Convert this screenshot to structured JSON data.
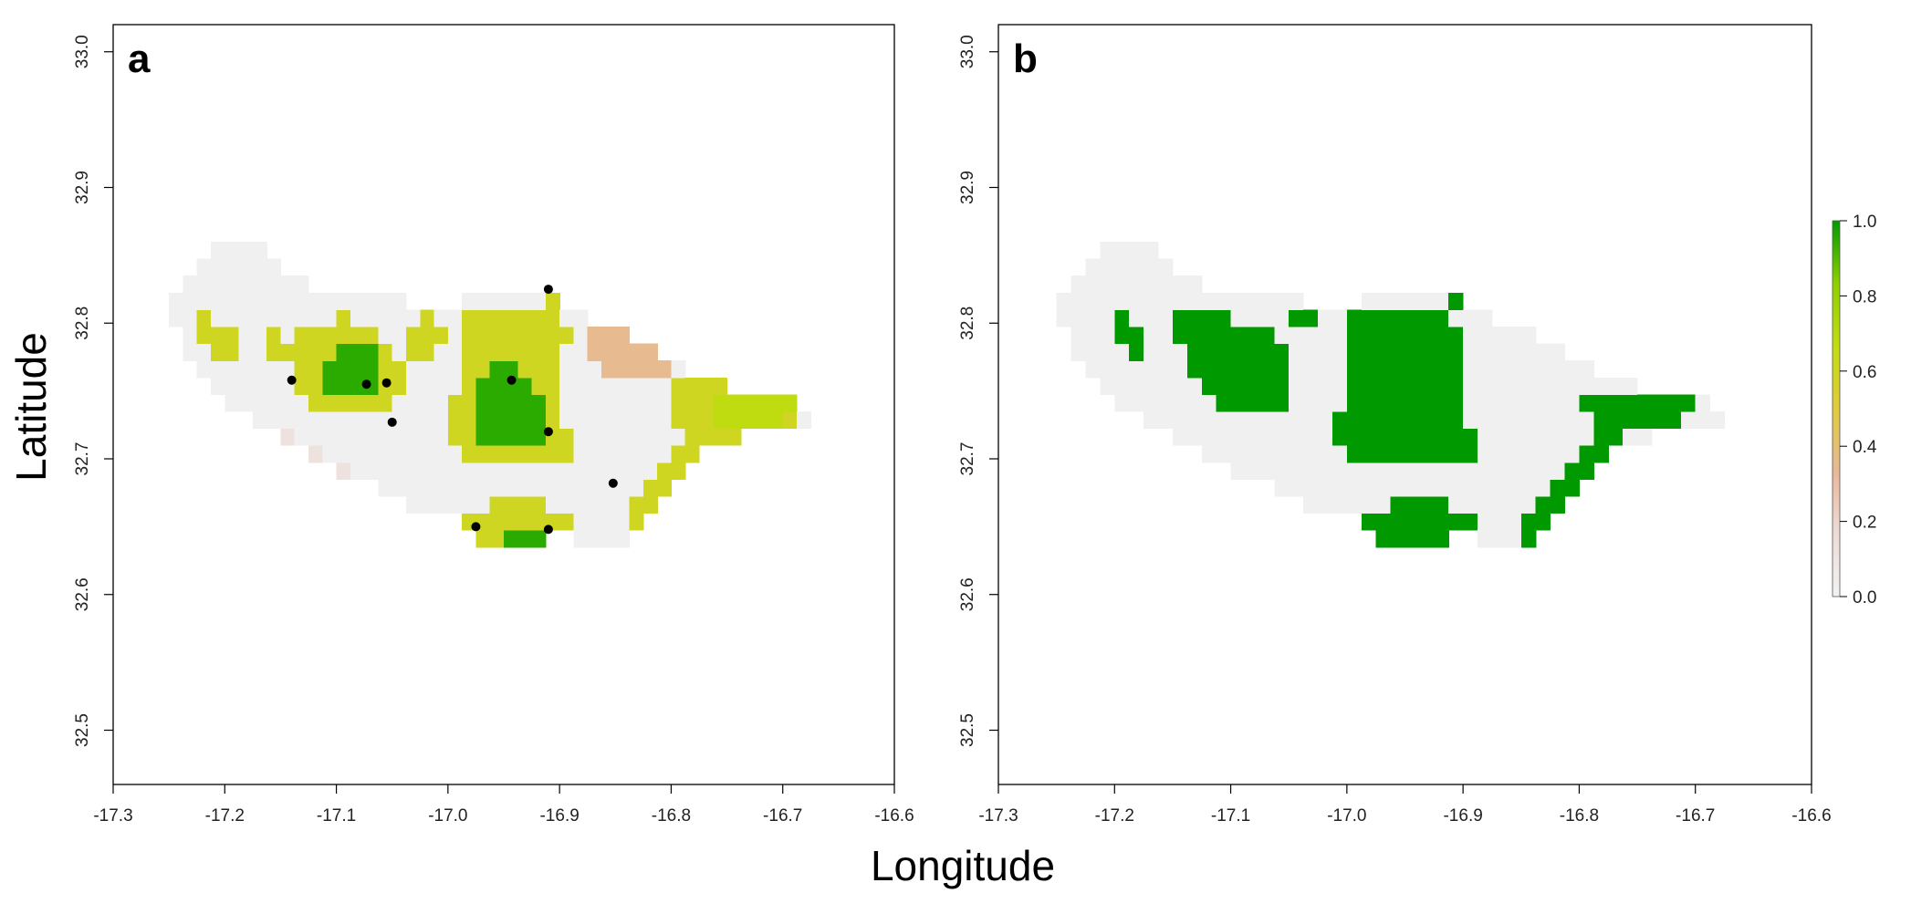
{
  "figure": {
    "xlabel": "Longitude",
    "ylabel": "Latitude"
  },
  "colors": {
    "scale": [
      "#f2f2f2",
      "#eddcd8",
      "#e8b898",
      "#e0cc3c",
      "#c2dd10",
      "#8fd000",
      "#009a00"
    ],
    "land_base": "#f0f0f0",
    "point": "#000000",
    "frame": "#000000"
  },
  "chart_data": [
    {
      "type": "heatmap",
      "panel_label": "a",
      "xlim": [
        -17.3,
        -16.6
      ],
      "ylim": [
        32.46,
        33.02
      ],
      "x_ticks": [
        "-17.3",
        "-17.2",
        "-17.1",
        "-17.0",
        "-16.9",
        "-16.8",
        "-16.7",
        "-16.6"
      ],
      "y_ticks": [
        "32.5",
        "32.6",
        "32.7",
        "32.8",
        "32.9",
        "33.0"
      ],
      "island_outline": [
        [
          -17.255,
          32.81
        ],
        [
          -17.235,
          32.835
        ],
        [
          -17.205,
          32.862
        ],
        [
          -17.175,
          32.86
        ],
        [
          -17.15,
          32.843
        ],
        [
          -17.12,
          32.828
        ],
        [
          -17.06,
          32.817
        ],
        [
          -17.0,
          32.815
        ],
        [
          -16.96,
          32.82
        ],
        [
          -16.92,
          32.826
        ],
        [
          -16.88,
          32.808
        ],
        [
          -16.84,
          32.792
        ],
        [
          -16.8,
          32.772
        ],
        [
          -16.76,
          32.757
        ],
        [
          -16.72,
          32.748
        ],
        [
          -16.685,
          32.742
        ],
        [
          -16.66,
          32.736
        ],
        [
          -16.69,
          32.722
        ],
        [
          -16.73,
          32.718
        ],
        [
          -16.77,
          32.705
        ],
        [
          -16.8,
          32.68
        ],
        [
          -16.82,
          32.655
        ],
        [
          -16.85,
          32.635
        ],
        [
          -16.89,
          32.643
        ],
        [
          -16.93,
          32.64
        ],
        [
          -16.97,
          32.64
        ],
        [
          -17.0,
          32.66
        ],
        [
          -17.04,
          32.668
        ],
        [
          -17.08,
          32.685
        ],
        [
          -17.12,
          32.7
        ],
        [
          -17.16,
          32.72
        ],
        [
          -17.2,
          32.745
        ],
        [
          -17.23,
          32.77
        ]
      ],
      "patches": [
        {
          "shape": [
            [
              -17.22,
              32.81
            ],
            [
              -17.2,
              32.8
            ],
            [
              -17.18,
              32.775
            ],
            [
              -17.2,
              32.765
            ],
            [
              -17.225,
              32.785
            ]
          ],
          "value": 0.6
        },
        {
          "shape": [
            [
              -17.155,
              32.8
            ],
            [
              -17.145,
              32.785
            ],
            [
              -17.125,
              32.77
            ],
            [
              -17.135,
              32.76
            ],
            [
              -17.16,
              32.78
            ]
          ],
          "value": 0.6
        },
        {
          "shape": [
            [
              -17.135,
              32.8
            ],
            [
              -17.095,
              32.805
            ],
            [
              -17.06,
              32.79
            ],
            [
              -17.04,
              32.775
            ],
            [
              -17.04,
              32.745
            ],
            [
              -17.06,
              32.73
            ],
            [
              -17.08,
              32.73
            ],
            [
              -17.12,
              32.74
            ],
            [
              -17.14,
              32.76
            ]
          ],
          "value": 0.6
        },
        {
          "shape": [
            [
              -17.1,
              32.79
            ],
            [
              -17.075,
              32.79
            ],
            [
              -17.055,
              32.775
            ],
            [
              -17.06,
              32.755
            ],
            [
              -17.09,
              32.745
            ],
            [
              -17.115,
              32.755
            ]
          ],
          "value": 0.95
        },
        {
          "shape": [
            [
              -17.045,
              32.8
            ],
            [
              -17.015,
              32.805
            ],
            [
              -17.0,
              32.79
            ],
            [
              -17.02,
              32.775
            ],
            [
              -17.04,
              32.78
            ]
          ],
          "value": 0.6
        },
        {
          "shape": [
            [
              -16.98,
              32.81
            ],
            [
              -16.94,
              32.815
            ],
            [
              -16.9,
              32.812
            ],
            [
              -16.89,
              32.79
            ],
            [
              -16.9,
              32.77
            ],
            [
              -16.9,
              32.73
            ],
            [
              -16.88,
              32.715
            ],
            [
              -16.895,
              32.695
            ],
            [
              -16.94,
              32.7
            ],
            [
              -16.98,
              32.695
            ],
            [
              -17.0,
              32.71
            ],
            [
              -16.995,
              32.74
            ],
            [
              -16.99,
              32.78
            ]
          ],
          "value": 0.6
        },
        {
          "shape": [
            [
              -16.975,
              32.765
            ],
            [
              -16.935,
              32.77
            ],
            [
              -16.915,
              32.75
            ],
            [
              -16.91,
              32.72
            ],
            [
              -16.935,
              32.705
            ],
            [
              -16.965,
              32.71
            ],
            [
              -16.98,
              32.735
            ]
          ],
          "value": 0.95
        },
        {
          "shape": [
            [
              -16.925,
              32.835
            ],
            [
              -16.9,
              32.838
            ],
            [
              -16.893,
              32.818
            ],
            [
              -16.915,
              32.812
            ]
          ],
          "value": 0.6
        },
        {
          "shape": [
            [
              -16.875,
              32.8
            ],
            [
              -16.85,
              32.81
            ],
            [
              -16.82,
              32.79
            ],
            [
              -16.8,
              32.77
            ],
            [
              -16.82,
              32.757
            ],
            [
              -16.85,
              32.76
            ],
            [
              -16.88,
              32.775
            ]
          ],
          "value": 0.35
        },
        {
          "shape": [
            [
              -16.8,
              32.755
            ],
            [
              -16.76,
              32.76
            ],
            [
              -16.72,
              32.75
            ],
            [
              -16.685,
              32.742
            ],
            [
              -16.68,
              32.73
            ],
            [
              -16.72,
              32.72
            ],
            [
              -16.76,
              32.708
            ],
            [
              -16.79,
              32.69
            ],
            [
              -16.8,
              32.67
            ],
            [
              -16.82,
              32.65
            ],
            [
              -16.85,
              32.64
            ],
            [
              -16.84,
              32.66
            ],
            [
              -16.81,
              32.69
            ],
            [
              -16.79,
              32.72
            ],
            [
              -16.8,
              32.74
            ]
          ],
          "value": 0.6
        },
        {
          "shape": [
            [
              -16.76,
              32.75
            ],
            [
              -16.72,
              32.748
            ],
            [
              -16.685,
              32.742
            ],
            [
              -16.68,
              32.732
            ],
            [
              -16.72,
              32.725
            ],
            [
              -16.755,
              32.72
            ]
          ],
          "value": 0.68
        },
        {
          "shape": [
            [
              -16.99,
              32.66
            ],
            [
              -16.95,
              32.67
            ],
            [
              -16.9,
              32.665
            ],
            [
              -16.88,
              32.65
            ],
            [
              -16.9,
              32.64
            ],
            [
              -16.94,
              32.632
            ],
            [
              -16.975,
              32.642
            ]
          ],
          "value": 0.6
        },
        {
          "shape": [
            [
              -16.965,
              32.65
            ],
            [
              -16.92,
              32.648
            ],
            [
              -16.875,
              32.646
            ],
            [
              -16.9,
              32.638
            ],
            [
              -16.94,
              32.632
            ]
          ],
          "value": 0.95
        },
        {
          "shape": [
            [
              -17.17,
              32.715
            ],
            [
              -17.14,
              32.71
            ],
            [
              -17.1,
              32.69
            ],
            [
              -17.07,
              32.672
            ],
            [
              -17.04,
              32.665
            ],
            [
              -17.06,
              32.68
            ],
            [
              -17.1,
              32.7
            ],
            [
              -17.14,
              32.72
            ]
          ],
          "value": 0.12
        }
      ],
      "points": [
        [
          -17.14,
          32.758
        ],
        [
          -17.073,
          32.755
        ],
        [
          -17.055,
          32.756
        ],
        [
          -17.05,
          32.727
        ],
        [
          -16.943,
          32.758
        ],
        [
          -16.91,
          32.825
        ],
        [
          -16.91,
          32.72
        ],
        [
          -16.852,
          32.682
        ],
        [
          -16.975,
          32.65
        ],
        [
          -16.91,
          32.648
        ]
      ]
    },
    {
      "type": "heatmap",
      "panel_label": "b",
      "xlim": [
        -17.3,
        -16.6
      ],
      "ylim": [
        32.46,
        33.02
      ],
      "x_ticks": [
        "-17.3",
        "-17.2",
        "-17.1",
        "-17.0",
        "-16.9",
        "-16.8",
        "-16.7",
        "-16.6"
      ],
      "y_ticks": [
        "32.5",
        "32.6",
        "32.7",
        "32.8",
        "32.9",
        "33.0"
      ],
      "island_outline": [
        [
          -17.255,
          32.81
        ],
        [
          -17.235,
          32.835
        ],
        [
          -17.205,
          32.862
        ],
        [
          -17.175,
          32.86
        ],
        [
          -17.15,
          32.843
        ],
        [
          -17.12,
          32.828
        ],
        [
          -17.06,
          32.817
        ],
        [
          -17.0,
          32.815
        ],
        [
          -16.96,
          32.82
        ],
        [
          -16.92,
          32.826
        ],
        [
          -16.88,
          32.808
        ],
        [
          -16.84,
          32.792
        ],
        [
          -16.8,
          32.772
        ],
        [
          -16.76,
          32.757
        ],
        [
          -16.72,
          32.748
        ],
        [
          -16.685,
          32.742
        ],
        [
          -16.66,
          32.736
        ],
        [
          -16.69,
          32.722
        ],
        [
          -16.73,
          32.718
        ],
        [
          -16.77,
          32.705
        ],
        [
          -16.8,
          32.68
        ],
        [
          -16.82,
          32.655
        ],
        [
          -16.85,
          32.635
        ],
        [
          -16.89,
          32.643
        ],
        [
          -16.93,
          32.64
        ],
        [
          -16.97,
          32.64
        ],
        [
          -17.0,
          32.66
        ],
        [
          -17.04,
          32.668
        ],
        [
          -17.08,
          32.685
        ],
        [
          -17.12,
          32.7
        ],
        [
          -17.16,
          32.72
        ],
        [
          -17.2,
          32.745
        ],
        [
          -17.23,
          32.77
        ]
      ],
      "patches": [
        {
          "shape": [
            [
              -17.2,
              32.81
            ],
            [
              -17.185,
              32.8
            ],
            [
              -17.17,
              32.78
            ],
            [
              -17.19,
              32.775
            ],
            [
              -17.205,
              32.795
            ]
          ],
          "value": 1.0
        },
        {
          "shape": [
            [
              -17.14,
              32.815
            ],
            [
              -17.1,
              32.805
            ],
            [
              -17.07,
              32.795
            ],
            [
              -17.05,
              32.778
            ],
            [
              -17.045,
              32.75
            ],
            [
              -17.06,
              32.735
            ],
            [
              -17.09,
              32.73
            ],
            [
              -17.12,
              32.745
            ],
            [
              -17.14,
              32.77
            ],
            [
              -17.15,
              32.8
            ]
          ],
          "value": 1.0
        },
        {
          "shape": [
            [
              -17.06,
              32.81
            ],
            [
              -17.03,
              32.812
            ],
            [
              -17.02,
              32.798
            ],
            [
              -17.04,
              32.79
            ]
          ],
          "value": 1.0
        },
        {
          "shape": [
            [
              -17.0,
              32.81
            ],
            [
              -16.97,
              32.815
            ],
            [
              -16.94,
              32.812
            ],
            [
              -16.91,
              32.805
            ],
            [
              -16.9,
              32.78
            ],
            [
              -16.905,
              32.76
            ],
            [
              -16.9,
              32.74
            ],
            [
              -16.89,
              32.72
            ],
            [
              -16.88,
              32.705
            ],
            [
              -16.9,
              32.695
            ],
            [
              -16.93,
              32.7
            ],
            [
              -16.97,
              32.695
            ],
            [
              -17.0,
              32.7
            ],
            [
              -17.01,
              32.72
            ],
            [
              -17.0,
              32.745
            ],
            [
              -16.995,
              32.78
            ]
          ],
          "value": 1.0
        },
        {
          "shape": [
            [
              -16.91,
              32.83
            ],
            [
              -16.89,
              32.83
            ],
            [
              -16.888,
              32.815
            ],
            [
              -16.908,
              32.812
            ]
          ],
          "value": 1.0
        },
        {
          "shape": [
            [
              -16.795,
              32.745
            ],
            [
              -16.765,
              32.755
            ],
            [
              -16.735,
              32.75
            ],
            [
              -16.7,
              32.745
            ],
            [
              -16.685,
              32.735
            ],
            [
              -16.72,
              32.728
            ],
            [
              -16.76,
              32.72
            ],
            [
              -16.785,
              32.7
            ],
            [
              -16.8,
              32.675
            ],
            [
              -16.82,
              32.652
            ],
            [
              -16.84,
              32.64
            ],
            [
              -16.855,
              32.645
            ],
            [
              -16.835,
              32.665
            ],
            [
              -16.81,
              32.69
            ],
            [
              -16.79,
              32.72
            ]
          ],
          "value": 1.0
        },
        {
          "shape": [
            [
              -16.99,
              32.66
            ],
            [
              -16.95,
              32.668
            ],
            [
              -16.91,
              32.666
            ],
            [
              -16.88,
              32.65
            ],
            [
              -16.895,
              32.64
            ],
            [
              -16.93,
              32.635
            ],
            [
              -16.965,
              32.638
            ],
            [
              -16.985,
              32.645
            ]
          ],
          "value": 1.0
        }
      ]
    }
  ],
  "colorbar": {
    "labels": [
      "1.0",
      "0.8",
      "0.6",
      "0.4",
      "0.2",
      "0.0"
    ],
    "range": [
      0.0,
      1.0
    ]
  }
}
